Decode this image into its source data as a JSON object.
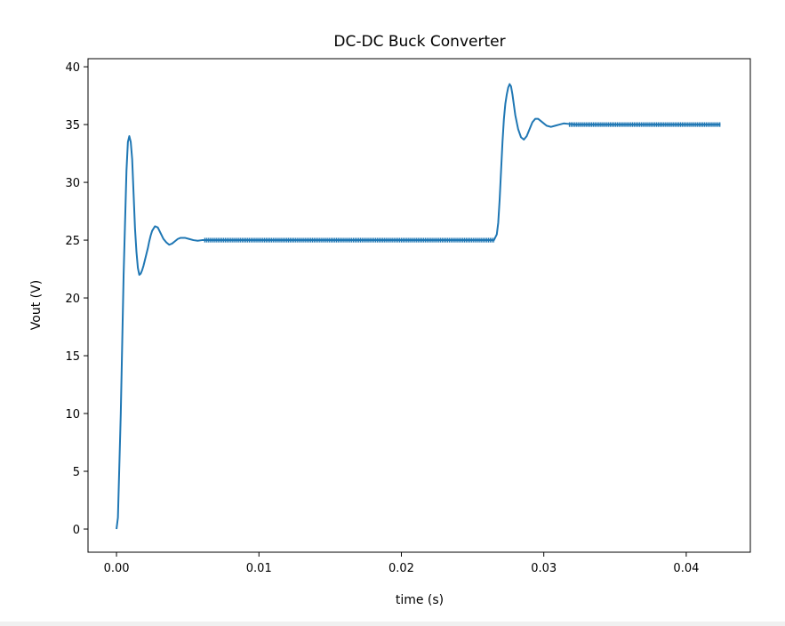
{
  "chart_data": {
    "type": "line",
    "title": "DC-DC Buck Converter",
    "xlabel": "time (s)",
    "ylabel": "Vout (V)",
    "xlim": [
      -0.002,
      0.0445
    ],
    "ylim": [
      -2,
      40.7
    ],
    "xticks": [
      0.0,
      0.01,
      0.02,
      0.03,
      0.04
    ],
    "xtick_labels": [
      "0.00",
      "0.01",
      "0.02",
      "0.03",
      "0.04"
    ],
    "yticks": [
      0,
      5,
      10,
      15,
      20,
      25,
      30,
      35,
      40
    ],
    "ytick_labels": [
      "0",
      "5",
      "10",
      "15",
      "20",
      "25",
      "30",
      "35",
      "40"
    ],
    "grid": false,
    "line_color": "#1f77b4",
    "series": [
      {
        "x": [
          0.0,
          0.0001,
          0.0003,
          0.0005,
          0.0007,
          0.0008,
          0.0009,
          0.001,
          0.0011,
          0.0012,
          0.0013,
          0.0014,
          0.0015,
          0.0016,
          0.0017,
          0.0018,
          0.0019,
          0.002,
          0.0021,
          0.0022,
          0.0023,
          0.0024,
          0.0025,
          0.0027,
          0.0029,
          0.0031,
          0.0033,
          0.0035,
          0.0037,
          0.0039,
          0.0041,
          0.0043,
          0.0045,
          0.0048,
          0.0051,
          0.0054,
          0.0057,
          0.006,
          0.0065,
          0.007,
          0.0265,
          0.0267,
          0.0268,
          0.0269,
          0.027,
          0.0271,
          0.0272,
          0.0273,
          0.0274,
          0.0275,
          0.0276,
          0.0277,
          0.0278,
          0.0279,
          0.028,
          0.0282,
          0.0284,
          0.0286,
          0.0288,
          0.029,
          0.0292,
          0.0294,
          0.0296,
          0.0298,
          0.03,
          0.0302,
          0.0305,
          0.0308,
          0.0311,
          0.0314,
          0.0318,
          0.0322,
          0.0328,
          0.0424
        ],
        "y": [
          0.0,
          1.0,
          10.0,
          22.0,
          31.0,
          33.5,
          34.0,
          33.5,
          32.0,
          29.0,
          26.0,
          24.0,
          22.6,
          22.0,
          22.1,
          22.4,
          22.8,
          23.3,
          23.8,
          24.3,
          24.9,
          25.4,
          25.8,
          26.2,
          26.1,
          25.6,
          25.1,
          24.8,
          24.6,
          24.7,
          24.9,
          25.1,
          25.2,
          25.2,
          25.1,
          25.0,
          24.95,
          25.0,
          25.0,
          25.0,
          25.0,
          25.5,
          26.5,
          28.5,
          31.0,
          33.5,
          35.5,
          36.8,
          37.6,
          38.2,
          38.5,
          38.3,
          37.6,
          36.7,
          35.8,
          34.6,
          33.9,
          33.7,
          34.0,
          34.6,
          35.2,
          35.5,
          35.5,
          35.3,
          35.1,
          34.9,
          34.8,
          34.9,
          35.0,
          35.1,
          35.05,
          35.0,
          35.0,
          35.0
        ]
      }
    ]
  }
}
